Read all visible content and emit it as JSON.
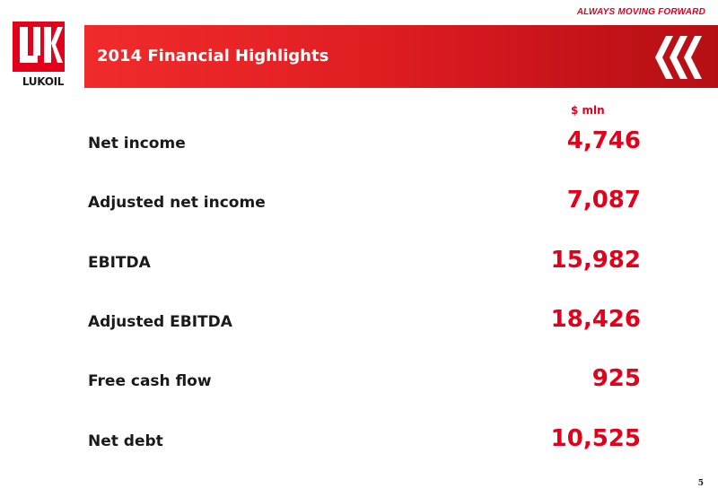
{
  "tagline": "ALWAYS MOVING FORWARD",
  "logo": {
    "wordmark": "LUKOIL",
    "brand_color": "#e2001a"
  },
  "header": {
    "title": "2014 Financial Highlights"
  },
  "unit": "$ mln",
  "metrics": [
    {
      "label": "Net income",
      "value": "4,746"
    },
    {
      "label": "Adjusted net income",
      "value": "7,087"
    },
    {
      "label": "EBITDA",
      "value": "15,982"
    },
    {
      "label": "Adjusted EBITDA",
      "value": "18,426"
    },
    {
      "label": "Free cash flow",
      "value": "925"
    },
    {
      "label": "Net debt",
      "value": "10,525"
    }
  ],
  "page_number": "5",
  "colors": {
    "accent": "#e2001a",
    "banner_dark": "#b50f14",
    "text": "#1a1a1a"
  }
}
